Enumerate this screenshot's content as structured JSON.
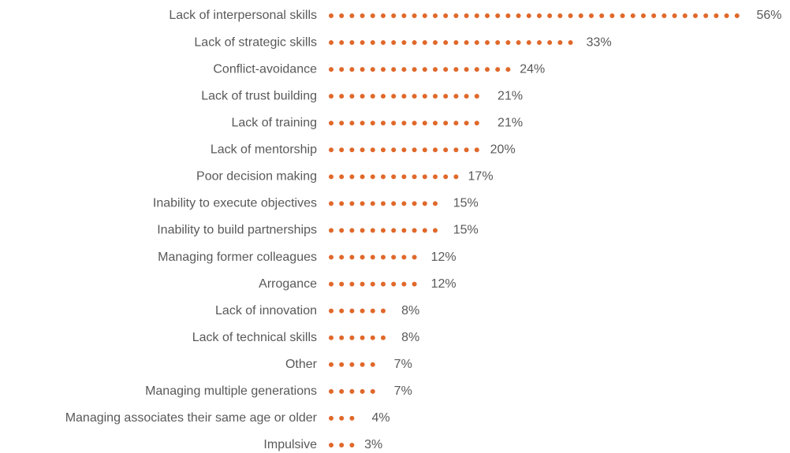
{
  "chart_data": {
    "type": "dotbar",
    "categories": [
      "Lack of interpersonal skills",
      "Lack of strategic skills",
      "Conflict-avoidance",
      "Lack of trust building",
      "Lack of training",
      "Lack of mentorship",
      "Poor decision making",
      "Inability to execute objectives",
      "Inability to build partnerships",
      "Managing former colleagues",
      "Arrogance",
      "Lack of innovation",
      "Lack of technical skills",
      "Other",
      "Managing multiple generations",
      "Managing associates their same age or older",
      "Impulsive"
    ],
    "values": [
      56,
      33,
      24,
      21,
      21,
      20,
      17,
      15,
      15,
      12,
      12,
      8,
      8,
      7,
      7,
      4,
      3
    ],
    "value_labels": [
      "56%",
      "33%",
      "24%",
      "21%",
      "21%",
      "20%",
      "17%",
      "15%",
      "15%",
      "12%",
      "12%",
      "8%",
      "8%",
      "7%",
      "7%",
      "4%",
      "3%"
    ],
    "color": "#e0682a",
    "xlim": [
      0,
      60
    ]
  }
}
